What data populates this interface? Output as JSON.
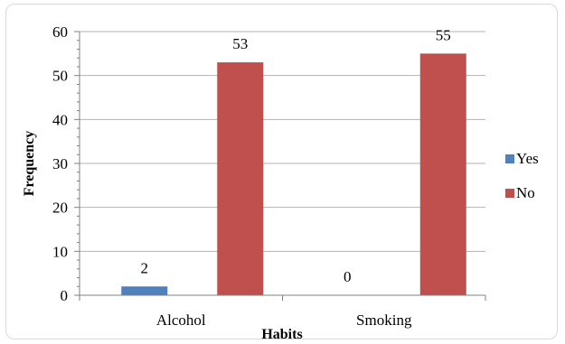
{
  "chart_data": {
    "type": "bar",
    "title": "",
    "xlabel": "Habits",
    "ylabel": "Frequency",
    "categories": [
      "Alcohol",
      "Smoking"
    ],
    "ylim": [
      0,
      60
    ],
    "y_ticks": [
      0,
      10,
      20,
      30,
      40,
      50,
      60
    ],
    "grid": true,
    "legend_position": "right",
    "series": [
      {
        "name": "Yes",
        "values": [
          2,
          0
        ],
        "labels": [
          "2",
          "0"
        ],
        "color": "#4f81bd"
      },
      {
        "name": "No",
        "values": [
          53,
          55
        ],
        "labels": [
          "53",
          "55"
        ],
        "color": "#c0504d"
      }
    ]
  }
}
